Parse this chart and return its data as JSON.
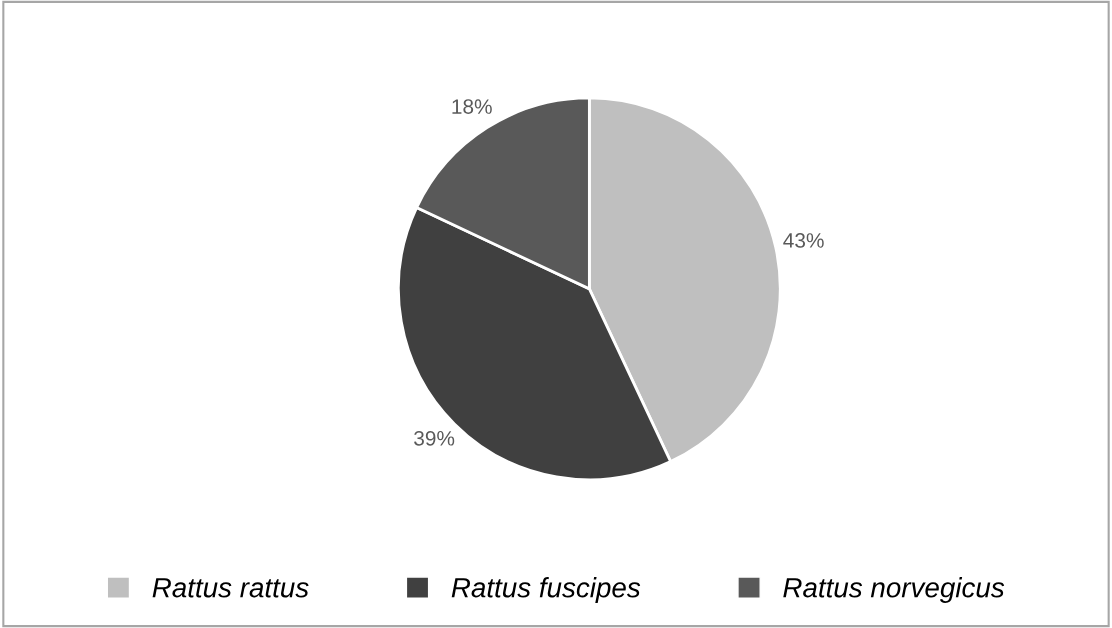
{
  "chart_data": {
    "type": "pie",
    "categories": [
      "Rattus rattus",
      "Rattus fuscipes",
      "Rattus norvegicus"
    ],
    "values": [
      43,
      39,
      18
    ],
    "colors": [
      "#bfbfbf",
      "#404040",
      "#595959"
    ],
    "value_labels": [
      "43%",
      "39%",
      "18%"
    ],
    "legend": "bottom"
  }
}
